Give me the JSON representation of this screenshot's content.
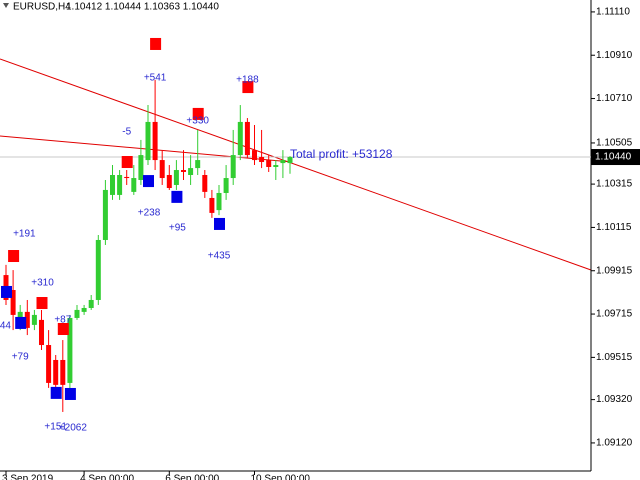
{
  "chart_data": {
    "type": "candlestick",
    "title": "EURUSD,H4",
    "subtitle": "1.10412 1.10444 1.10363 1.10440",
    "annotation": "Total profit: +53128",
    "up_color": "#32cd32",
    "down_color": "#ff0000",
    "categories": [
      "3 Sep 2019",
      null,
      null,
      null,
      null,
      null,
      null,
      null,
      null,
      null,
      null,
      "4 Sep 00:00",
      null,
      null,
      null,
      null,
      null,
      null,
      null,
      null,
      null,
      null,
      null,
      "6 Sep 00:00",
      null,
      null,
      null,
      null,
      null,
      null,
      null,
      null,
      null,
      null,
      null,
      "10 Sep 00:00",
      null,
      null,
      null,
      null,
      null
    ],
    "open": [
      1.09895,
      1.09826,
      1.09665,
      1.09725,
      1.09665,
      1.09688,
      1.09572,
      1.09503,
      1.09503,
      1.09397,
      1.09697,
      1.09725,
      1.09743,
      1.0978,
      1.10057,
      1.10265,
      1.10265,
      1.10348,
      1.10279,
      1.10334,
      1.10426,
      1.10602,
      1.10426,
      1.10357,
      1.10311,
      1.1038,
      1.10357,
      1.10389,
      1.10357,
      1.10251,
      1.10195,
      1.10274,
      1.10343,
      1.10449,
      1.10602,
      1.10472,
      1.1044,
      1.10426,
      1.10394,
      1.10412,
      1.10412
    ],
    "high": [
      1.09942,
      1.09918,
      1.09757,
      1.0978,
      1.09734,
      1.09734,
      1.09641,
      1.09526,
      1.09595,
      1.09711,
      1.09757,
      1.09757,
      1.09803,
      1.1008,
      1.10334,
      1.10403,
      1.1038,
      1.1038,
      1.10403,
      1.10519,
      1.1068,
      1.10796,
      1.10472,
      1.10403,
      1.10426,
      1.10472,
      1.10449,
      1.10565,
      1.1038,
      1.10288,
      1.10311,
      1.10403,
      1.10565,
      1.1068,
      1.1062,
      1.10588,
      1.10565,
      1.10449,
      1.10426,
      1.10472,
      1.10444
    ],
    "low": [
      1.09757,
      1.09641,
      1.09641,
      1.09618,
      1.09641,
      1.09549,
      1.09374,
      1.09364,
      1.09263,
      1.09364,
      1.09688,
      1.09711,
      1.09734,
      1.09757,
      1.10034,
      1.10242,
      1.10242,
      1.10311,
      1.10265,
      1.10311,
      1.10403,
      1.1038,
      1.10311,
      1.10288,
      1.10288,
      1.10334,
      1.10311,
      1.10357,
      1.10251,
      1.10159,
      1.10172,
      1.10242,
      1.10311,
      1.10426,
      1.10436,
      1.10403,
      1.10389,
      1.10371,
      1.10334,
      1.10343,
      1.10363
    ],
    "close": [
      1.0978,
      1.09711,
      1.09725,
      1.09651,
      1.09711,
      1.09572,
      1.09397,
      1.09388,
      1.09388,
      1.09697,
      1.09734,
      1.09743,
      1.0978,
      1.10057,
      1.10288,
      1.10357,
      1.10357,
      1.10343,
      1.10343,
      1.10449,
      1.10602,
      1.10426,
      1.10343,
      1.10297,
      1.1038,
      1.10371,
      1.10389,
      1.10426,
      1.10279,
      1.10182,
      1.10274,
      1.10343,
      1.10449,
      1.10602,
      1.10449,
      1.10426,
      1.10417,
      1.10394,
      1.10403,
      1.10426,
      1.1044
    ],
    "current_price": {
      "value": 1.1044,
      "label": "1.10440"
    },
    "trades": [
      {
        "index": 21,
        "price": 1.10962,
        "color": "#ff0000",
        "label": "+541"
      },
      {
        "index": 34,
        "price": 1.10763,
        "color": "#ff0000",
        "label": "+188"
      },
      {
        "index": 27,
        "price": 1.10639,
        "color": "#ff0000",
        "label": "+330"
      },
      {
        "index": 17,
        "price": 1.10417,
        "color": "#ff0000",
        "label": "-5"
      },
      {
        "index": 20,
        "price": 1.10329,
        "color": "#0000e6",
        "label": "+238"
      },
      {
        "index": 24,
        "price": 1.10256,
        "color": "#0000e6",
        "label": "+95"
      },
      {
        "index": 30,
        "price": 1.10131,
        "color": "#0000e6",
        "label": "+435"
      },
      {
        "index": 1,
        "price": 1.09983,
        "color": "#ff0000",
        "label": "+191"
      },
      {
        "index": 0,
        "price": 1.09817,
        "color": "#0000e6",
        "label": "44"
      },
      {
        "index": 5,
        "price": 1.09766,
        "color": "#ff0000",
        "label": "+310"
      },
      {
        "index": 8,
        "price": 1.09646,
        "color": "#ff0000",
        "label": "+87"
      },
      {
        "index": 2,
        "price": 1.09674,
        "color": "#0000e6",
        "label": "+79"
      },
      {
        "index": 7,
        "price": 1.09351,
        "color": "#0000e6",
        "label": "+151"
      },
      {
        "index": 9,
        "price": 1.09346,
        "color": "#0000e6",
        "label": "+2062"
      }
    ],
    "ylim": [
      1.08995,
      1.11165
    ],
    "yticks": [
      {
        "value": 1.1111,
        "label": "1.11110"
      },
      {
        "value": 1.1091,
        "label": "1.10910"
      },
      {
        "value": 1.1071,
        "label": "1.10710"
      },
      {
        "value": 1.10505,
        "label": "1.10505"
      },
      {
        "value": 1.10315,
        "label": "1.10315"
      },
      {
        "value": 1.10115,
        "label": "1.10115"
      },
      {
        "value": 1.09915,
        "label": "1.09915"
      },
      {
        "value": 1.09715,
        "label": "1.09715"
      },
      {
        "value": 1.09515,
        "label": "1.09515"
      },
      {
        "value": 1.0932,
        "label": "1.09320"
      },
      {
        "value": 1.0912,
        "label": "1.09120"
      }
    ]
  }
}
